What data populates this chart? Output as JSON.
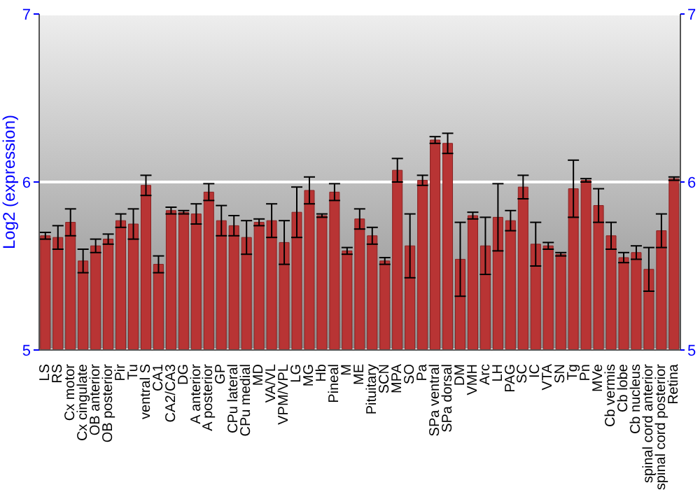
{
  "chart_data": {
    "type": "bar",
    "ylabel": "Log2 (expression)",
    "categories": [
      "LS",
      "RS",
      "Cx motor",
      "Cx cingulate",
      "OB anterior",
      "OB posterior",
      "Pir",
      "Tu",
      "ventral S",
      "CA1",
      "CA2/CA3",
      "DG",
      "A anterior",
      "A posterior",
      "GP",
      "CPu lateral",
      "CPu medial",
      "MD",
      "VA/VL",
      "VPM/VPL",
      "LG",
      "MG",
      "Hb",
      "Pineal",
      "M",
      "ME",
      "Pituitary",
      "SCN",
      "MPA",
      "SO",
      "Pa",
      "SPa ventral",
      "SPa dorsal",
      "DM",
      "VMH",
      "Arc",
      "LH",
      "PAG",
      "SC",
      "IC",
      "VTA",
      "SN",
      "Tg",
      "Pn",
      "MVe",
      "Cb vermis",
      "Cb lobe",
      "Cb nucleus",
      "spinal cord anterior",
      "spinal cord posterior",
      "Retina"
    ],
    "series": [
      {
        "color": "#b83434",
        "values": [
          5.68,
          5.67,
          5.76,
          5.53,
          5.62,
          5.66,
          5.77,
          5.75,
          5.98,
          5.51,
          5.83,
          5.82,
          5.81,
          5.94,
          5.77,
          5.74,
          5.67,
          5.76,
          5.77,
          5.64,
          5.82,
          5.95,
          5.8,
          5.94,
          5.59,
          5.78,
          5.68,
          5.53,
          6.07,
          5.62,
          6.01,
          6.25,
          6.23,
          5.54,
          5.8,
          5.62,
          5.79,
          5.77,
          5.97,
          5.63,
          5.62,
          5.57,
          5.96,
          6.01,
          5.86,
          5.68,
          5.55,
          5.58,
          5.48,
          5.71,
          6.02
        ],
        "errors": [
          0.02,
          0.07,
          0.08,
          0.07,
          0.04,
          0.03,
          0.04,
          0.09,
          0.06,
          0.05,
          0.02,
          0.01,
          0.06,
          0.05,
          0.09,
          0.06,
          0.1,
          0.02,
          0.1,
          0.13,
          0.15,
          0.08,
          0.01,
          0.05,
          0.02,
          0.06,
          0.05,
          0.02,
          0.07,
          0.19,
          0.03,
          0.02,
          0.06,
          0.22,
          0.02,
          0.17,
          0.2,
          0.06,
          0.07,
          0.13,
          0.02,
          0.01,
          0.17,
          0.01,
          0.1,
          0.08,
          0.03,
          0.04,
          0.13,
          0.1,
          0.01
        ]
      }
    ],
    "ylim": [
      5,
      7
    ],
    "yticks": [
      5,
      6,
      7
    ],
    "y2lim": [
      5,
      7
    ],
    "y2ticks": [
      5,
      6,
      7
    ],
    "grid": "y"
  }
}
